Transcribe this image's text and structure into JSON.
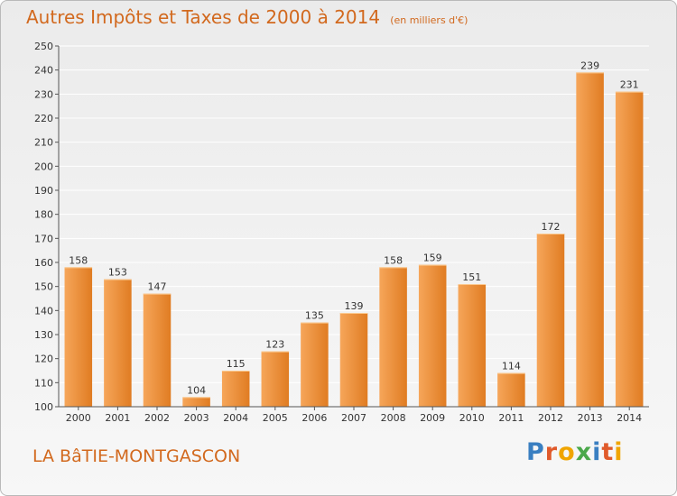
{
  "header": {
    "title": "Autres Impôts et Taxes de 2000 à 2014",
    "unit": "(en milliers d'€)"
  },
  "footer": {
    "commune": "LA BâTIE-MONTGASCON",
    "logo_letters": [
      {
        "ch": "P",
        "color": "#3a7fc1"
      },
      {
        "ch": "r",
        "color": "#e05a2b"
      },
      {
        "ch": "o",
        "color": "#f0a500"
      },
      {
        "ch": "x",
        "color": "#4aa84a"
      },
      {
        "ch": "i",
        "color": "#3a7fc1"
      },
      {
        "ch": "t",
        "color": "#e05a2b"
      },
      {
        "ch": "i",
        "color": "#f0a500"
      }
    ]
  },
  "colors": {
    "bar_light": "#f6a65a",
    "bar_dark": "#e07c22",
    "text_accent": "#d2691e",
    "grid": "#ffffff"
  },
  "chart_data": {
    "type": "bar",
    "title": "Autres Impôts et Taxes de 2000 à 2014",
    "subtitle": "(en milliers d'€)",
    "categories": [
      "2000",
      "2001",
      "2002",
      "2003",
      "2004",
      "2005",
      "2006",
      "2007",
      "2008",
      "2009",
      "2010",
      "2011",
      "2012",
      "2013",
      "2014"
    ],
    "values": [
      158,
      153,
      147,
      104,
      115,
      123,
      135,
      139,
      158,
      159,
      151,
      114,
      172,
      239,
      231
    ],
    "ylim": [
      100,
      250
    ],
    "yticks": [
      100,
      110,
      120,
      130,
      140,
      150,
      160,
      170,
      180,
      190,
      200,
      210,
      220,
      230,
      240,
      250
    ],
    "grid": true,
    "data_labels": true
  }
}
